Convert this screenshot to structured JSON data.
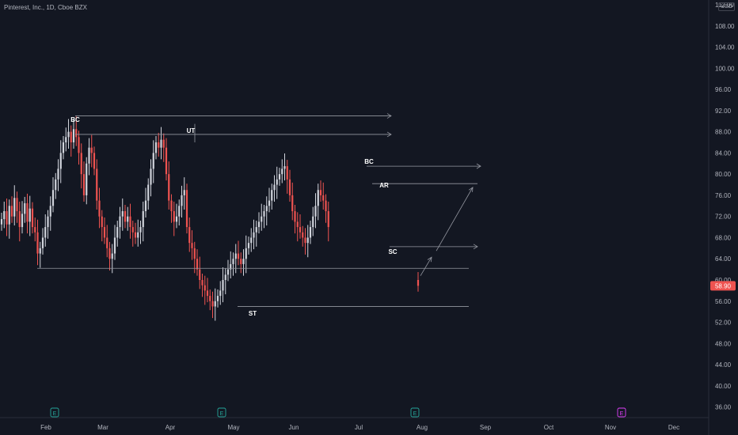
{
  "header": {
    "symbol": "Pinterest, Inc., 1D, Cboe BZX"
  },
  "scale": {
    "currency": "USD"
  },
  "colors": {
    "up": "#d1d4dc",
    "down": "#ef5350",
    "background": "#131722",
    "grid": "#1e222d",
    "line": "#9598a1",
    "price_label_bg": "#ef5350"
  },
  "chart_data": {
    "type": "candlestick",
    "title": "Pinterest, Inc., 1D, Cboe BZX",
    "ylim": [
      34,
      112
    ],
    "y_ticks": [
      36,
      40,
      44,
      48,
      52,
      56,
      60,
      64,
      68,
      72,
      76,
      80,
      84,
      88,
      92,
      96,
      100,
      104,
      108,
      112
    ],
    "x_ticks": [
      "Feb",
      "Mar",
      "Apr",
      "May",
      "Jun",
      "Jul",
      "Aug",
      "Sep",
      "Oct",
      "Nov",
      "Dec"
    ],
    "last_price": "58.90",
    "grid": false,
    "candles_close": [
      71.5,
      73,
      70.5,
      74,
      72,
      75.5,
      73,
      70,
      72.5,
      74.5,
      71,
      73.5,
      70,
      69,
      65,
      66,
      68,
      70,
      72,
      74,
      77,
      79,
      81,
      84,
      86,
      87,
      88,
      86,
      88.5,
      87,
      84,
      80,
      76,
      82,
      85,
      84,
      81,
      75,
      72,
      70,
      68,
      66,
      64,
      65,
      68,
      70,
      72,
      73,
      71,
      72,
      70,
      69,
      68,
      69,
      70,
      73,
      75,
      78,
      81,
      84,
      86,
      85,
      86.5,
      85,
      80,
      75,
      73,
      71,
      72,
      74,
      76,
      77,
      70,
      67,
      66,
      64,
      62,
      60,
      59,
      58,
      57,
      56,
      55,
      56,
      57,
      58,
      60,
      61,
      62,
      63,
      64,
      65,
      64,
      63,
      64,
      66,
      67,
      68,
      69,
      70,
      71,
      72,
      73,
      74,
      75,
      77,
      78,
      79,
      80,
      81,
      81.5,
      79,
      76,
      73,
      71,
      70,
      69,
      68,
      67,
      68,
      70,
      72,
      74,
      77,
      76,
      75,
      73,
      70
    ],
    "annotations": [
      {
        "label": "BC",
        "x_index": 28,
        "price": 89.5
      },
      {
        "label": "UT",
        "x_index": 76,
        "price": 87.5
      },
      {
        "label": "ST",
        "x_index": 95,
        "price": 54.5
      },
      {
        "label": "BC",
        "x_index": 139,
        "price": 82.5
      },
      {
        "label": "AR",
        "x_index": 145,
        "price": 78
      },
      {
        "label": "SC",
        "x_index": 148,
        "price": 65.5
      },
      {
        "label": "E",
        "x_index": 20,
        "price": 36
      },
      {
        "label": "E",
        "x_index": 83,
        "price": 36
      },
      {
        "label": "E",
        "x_index": 157,
        "price": 36
      },
      {
        "label": "E",
        "x_index": 236,
        "price": 36
      }
    ]
  }
}
